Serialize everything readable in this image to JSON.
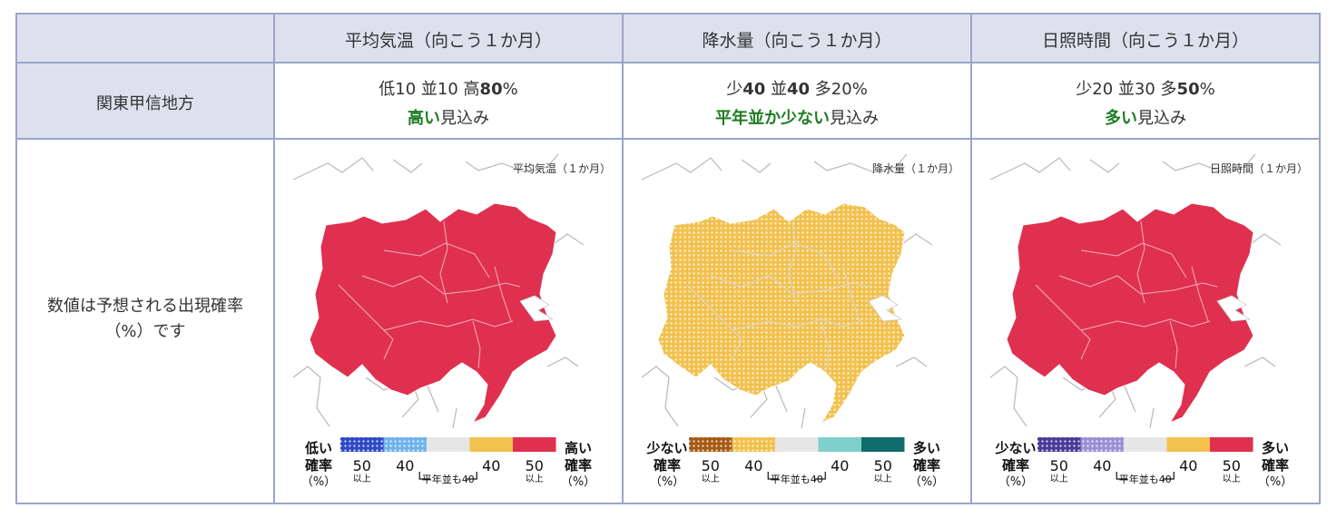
{
  "header": {
    "corner": "",
    "columns": [
      "平均気温（向こう１か月）",
      "降水量（向こう１か月）",
      "日照時間（向こう１か月）"
    ]
  },
  "region": "関東甲信地方",
  "forecasts": [
    {
      "probs": [
        {
          "label": "低",
          "value": "10",
          "bold": false
        },
        {
          "label": "並",
          "value": "10",
          "bold": false
        },
        {
          "label": "高",
          "value": "80",
          "bold": true
        }
      ],
      "percent": "%",
      "outlook_highlight": "高い",
      "outlook_suffix": "見込み"
    },
    {
      "probs": [
        {
          "label": "少",
          "value": "40",
          "bold": true
        },
        {
          "label": "並",
          "value": "40",
          "bold": true
        },
        {
          "label": "多",
          "value": "20",
          "bold": false
        }
      ],
      "percent": "%",
      "outlook_highlight": "平年並か少ない",
      "outlook_suffix": "見込み"
    },
    {
      "probs": [
        {
          "label": "少",
          "value": "20",
          "bold": false
        },
        {
          "label": "並",
          "value": "30",
          "bold": false
        },
        {
          "label": "多",
          "value": "50",
          "bold": true
        }
      ],
      "percent": "%",
      "outlook_highlight": "多い",
      "outlook_suffix": "見込み"
    }
  ],
  "note": {
    "line1": "数値は予想される出現確率",
    "line2": "（%）です"
  },
  "maps": [
    {
      "title": "平均気温（１か月）",
      "fill": "#e0304f",
      "pattern": "solid",
      "legend": {
        "left_top": "低い",
        "left_bottom": "確率",
        "left_unit": "（%）",
        "right_top": "高い",
        "right_bottom": "確率",
        "right_unit": "（%）",
        "colors": [
          "#2f49c4",
          "#6fb3ec",
          "#e6e6e6",
          "#f2c14e",
          "#e0304f"
        ],
        "dotted": [
          true,
          true,
          false,
          false,
          false
        ],
        "n50a": "50",
        "sub_a": "以上",
        "n40a": "40",
        "n40b": "40",
        "n50b": "50",
        "sub_b": "以上",
        "bracket": "平年並も40"
      }
    },
    {
      "title": "降水量（１か月）",
      "fill": "#f2c14e",
      "pattern": "dotted",
      "legend": {
        "left_top": "少ない",
        "left_bottom": "確率",
        "left_unit": "（%）",
        "right_top": "多い",
        "right_bottom": "確率",
        "right_unit": "（%）",
        "colors": [
          "#a65a12",
          "#f2c14e",
          "#e6e6e6",
          "#7fd0cc",
          "#0f6d6d"
        ],
        "dotted": [
          true,
          true,
          false,
          false,
          false
        ],
        "n50a": "50",
        "sub_a": "以上",
        "n40a": "40",
        "n40b": "40",
        "n50b": "50",
        "sub_b": "以上",
        "bracket": "平年並も40"
      }
    },
    {
      "title": "日照時間（１か月）",
      "fill": "#e0304f",
      "pattern": "solid",
      "legend": {
        "left_top": "少ない",
        "left_bottom": "確率",
        "left_unit": "（%）",
        "right_top": "多い",
        "right_bottom": "確率",
        "right_unit": "（%）",
        "colors": [
          "#4a3a9a",
          "#9c8fd6",
          "#e6e6e6",
          "#f2c14e",
          "#e0304f"
        ],
        "dotted": [
          true,
          true,
          false,
          false,
          false
        ],
        "n50a": "50",
        "sub_a": "以上",
        "n40a": "40",
        "n40b": "40",
        "n50b": "50",
        "sub_b": "以上",
        "bracket": "平年並も40"
      }
    }
  ]
}
